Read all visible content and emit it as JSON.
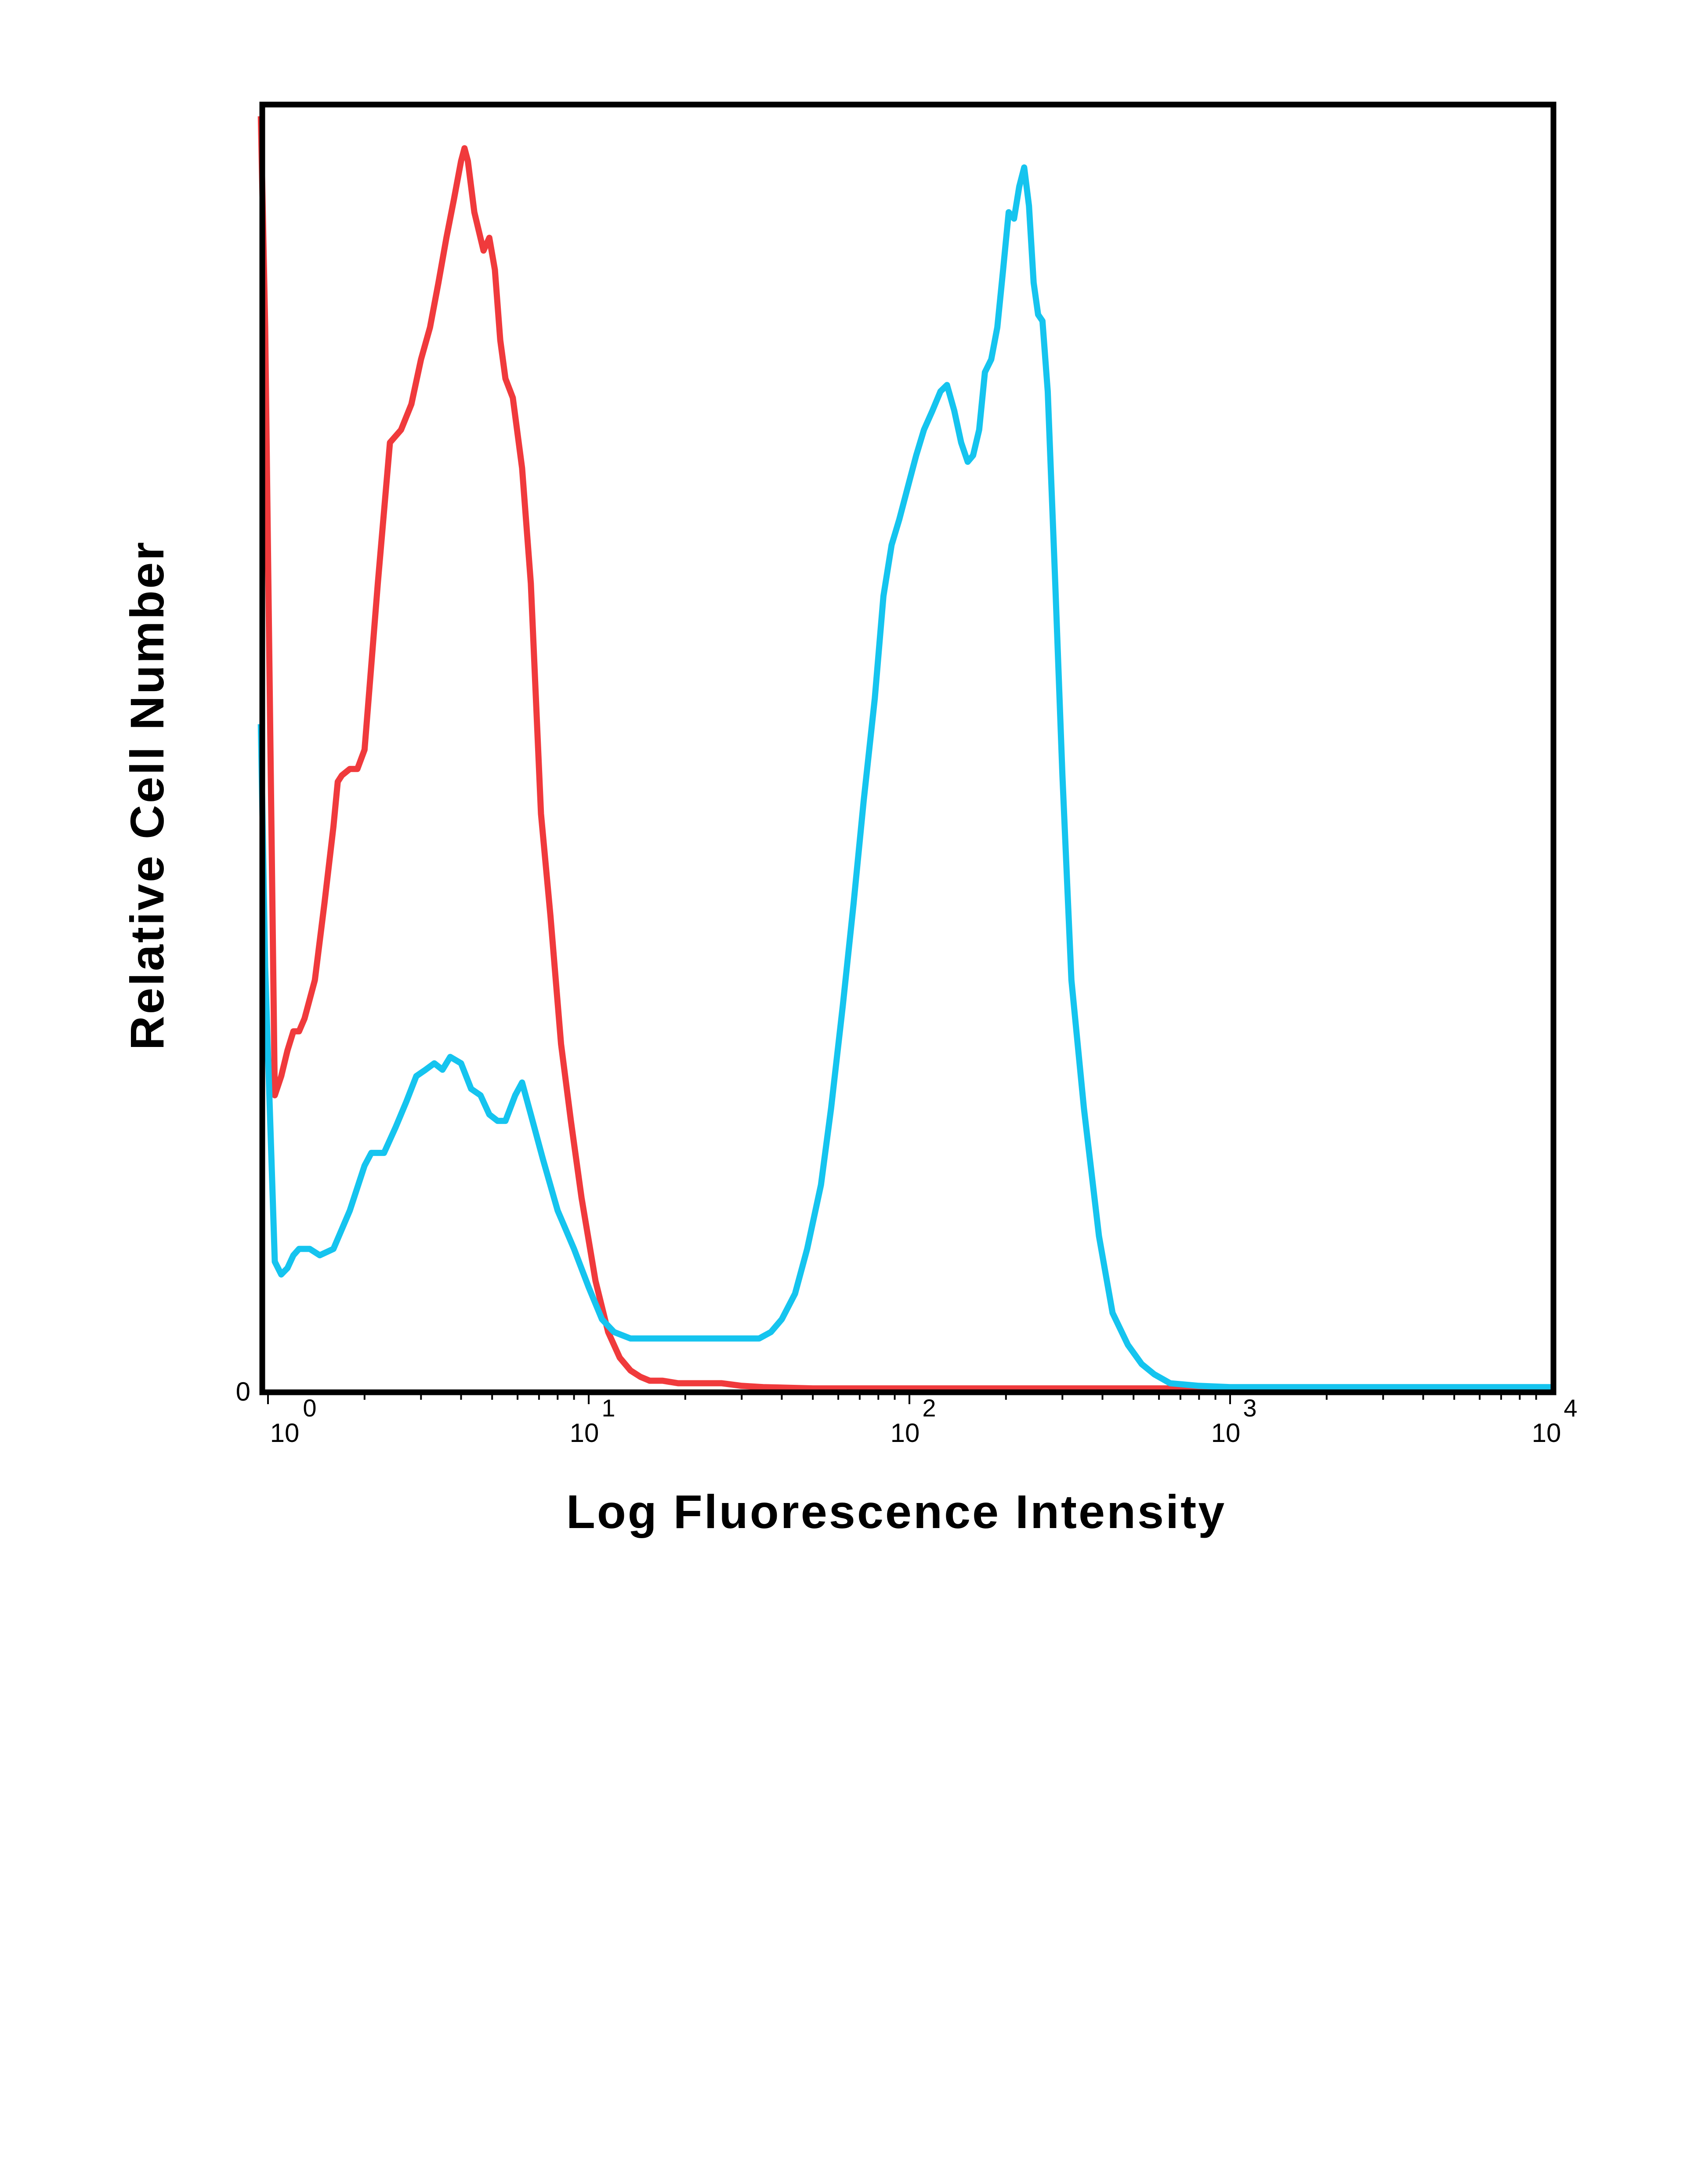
{
  "chart_data": {
    "type": "line",
    "title": "",
    "xlabel": "Log Fluorescence Intensity",
    "ylabel": "Relative Cell Number",
    "x_scale": "log",
    "xlim": [
      1,
      10000
    ],
    "ylim": [
      0,
      100
    ],
    "grid": false,
    "legend": "none",
    "x_ticks": [
      {
        "base": "10",
        "exp": "0",
        "value": 1
      },
      {
        "base": "10",
        "exp": "1",
        "value": 10
      },
      {
        "base": "10",
        "exp": "2",
        "value": 100
      },
      {
        "base": "10",
        "exp": "3",
        "value": 1000
      },
      {
        "base": "10",
        "exp": "4",
        "value": 10000
      }
    ],
    "y_tick_label": "0",
    "series": [
      {
        "color": "#f03a3c",
        "x": [
          0.95,
          0.98,
          1.05,
          1.1,
          1.15,
          1.2,
          1.25,
          1.3,
          1.4,
          1.5,
          1.6,
          1.65,
          1.7,
          1.8,
          1.9,
          2.0,
          2.2,
          2.4,
          2.6,
          2.8,
          3.0,
          3.2,
          3.4,
          3.6,
          3.8,
          4.0,
          4.1,
          4.2,
          4.4,
          4.7,
          4.9,
          5.1,
          5.3,
          5.5,
          5.8,
          6.2,
          6.6,
          7.1,
          7.6,
          8.2,
          8.8,
          9.5,
          10.5,
          11.5,
          12.5,
          13.5,
          14.5,
          15.5,
          17,
          19,
          22,
          26,
          30,
          35,
          50,
          100,
          300,
          700,
          10000
        ],
        "y": [
          99.5,
          83,
          23,
          24.5,
          26.5,
          28,
          28,
          29,
          32,
          38,
          44,
          47.5,
          48,
          48.5,
          48.5,
          50,
          63,
          74,
          75,
          77,
          80.5,
          83,
          86.5,
          90,
          93,
          96,
          97,
          96,
          92,
          89,
          90,
          87.5,
          82,
          79,
          77.5,
          72,
          63,
          45,
          37,
          27,
          21,
          15,
          8.5,
          4.5,
          2.5,
          1.5,
          1.0,
          0.7,
          0.7,
          0.5,
          0.5,
          0.5,
          0.3,
          0.2,
          0.1,
          0.1,
          0.1,
          0.1,
          0.1
        ]
      },
      {
        "color": "#15c4ef",
        "x": [
          0.95,
          0.98,
          1.05,
          1.1,
          1.15,
          1.2,
          1.25,
          1.35,
          1.45,
          1.6,
          1.8,
          2.0,
          2.1,
          2.3,
          2.5,
          2.7,
          2.9,
          3.1,
          3.3,
          3.5,
          3.7,
          4.0,
          4.3,
          4.6,
          4.9,
          5.2,
          5.5,
          5.9,
          6.2,
          6.6,
          7.2,
          8.0,
          9.0,
          10.0,
          11.0,
          12.0,
          13.5,
          15,
          17,
          20,
          25,
          30,
          34,
          37,
          40,
          44,
          48,
          53,
          57,
          62,
          67,
          72,
          78,
          83,
          88,
          93,
          100,
          105,
          111,
          118,
          125,
          131,
          138,
          145,
          152,
          158,
          165,
          172,
          180,
          188,
          196,
          204,
          212,
          220,
          228,
          236,
          244,
          252,
          260,
          270,
          285,
          300,
          320,
          350,
          390,
          430,
          480,
          530,
          580,
          650,
          800,
          1000,
          2000,
          5000,
          10000
        ],
        "y": [
          52,
          33,
          10,
          9,
          9.5,
          10.5,
          11,
          11,
          10.5,
          11,
          14,
          17.5,
          18.5,
          18.5,
          20.5,
          22.5,
          24.5,
          25,
          25.5,
          25,
          26,
          25.5,
          23.5,
          23,
          21.5,
          21,
          21,
          23,
          24,
          21.5,
          18,
          14,
          11,
          8,
          5.5,
          4.5,
          4,
          4,
          4.0,
          4.0,
          4.0,
          4.0,
          4.0,
          4.5,
          5.5,
          7.5,
          11,
          16,
          22,
          30,
          38,
          46,
          54,
          62,
          66,
          68,
          71,
          73,
          75,
          76.5,
          78,
          78.5,
          76.5,
          74,
          72.5,
          73,
          75,
          79.5,
          80.5,
          83,
          87.5,
          92,
          91.5,
          94,
          95.5,
          92.5,
          86.5,
          84,
          83.5,
          78,
          63,
          48,
          32,
          22,
          12,
          6,
          3.5,
          2,
          1.2,
          0.5,
          0.3,
          0.2,
          0.2,
          0.2,
          0.2
        ]
      }
    ]
  }
}
